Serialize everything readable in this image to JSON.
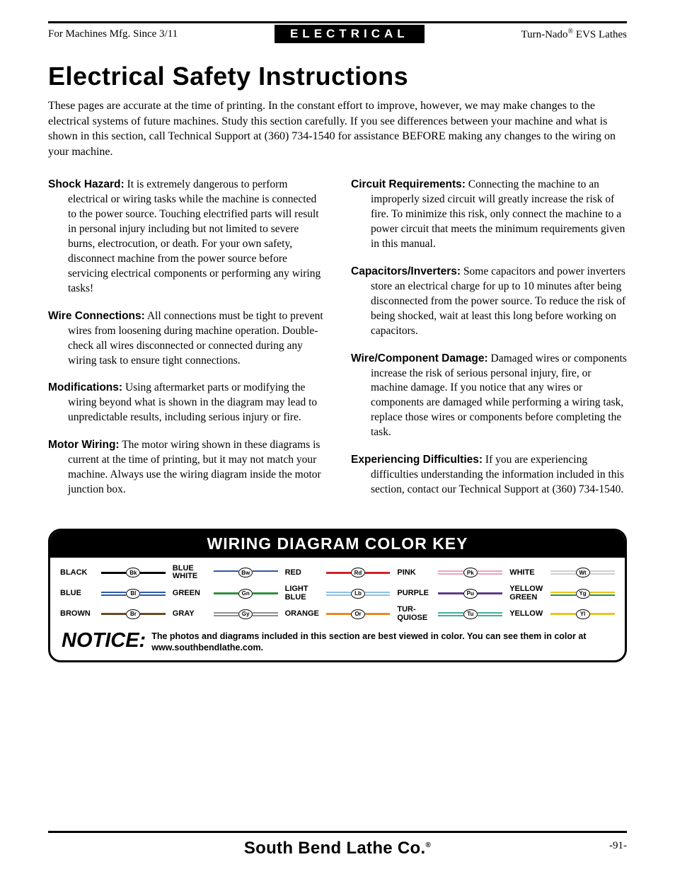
{
  "header": {
    "left": "For Machines Mfg. Since 3/11",
    "center": "ELECTRICAL",
    "right_prefix": "Turn-Nado",
    "right_reg": "®",
    "right_suffix": " EVS Lathes"
  },
  "title": "Electrical Safety Instructions",
  "intro": "These pages are accurate at the time of printing. In the constant effort to improve, however, we may make changes to the electrical systems of future machines. Study this section carefully. If you see differences between your machine and what is shown in this section, call Technical Support at (360) 734-1540 for assistance BEFORE making any changes to the wiring on your machine.",
  "left_items": [
    {
      "label": "Shock Hazard:",
      "text": " It is extremely dangerous to perform electrical or wiring tasks while the machine is connected to the power source. Touching electrified parts will result in personal injury including but not limited to severe burns, electrocution, or death. For your own safety, disconnect machine from the power source before servicing electrical components or performing any wiring tasks!"
    },
    {
      "label": "Wire Connections:",
      "text": " All connections must be tight to prevent wires from loosening during machine operation. Double-check all wires disconnected or connected during any wiring task to ensure tight connections."
    },
    {
      "label": "Modifications:",
      "text": " Using aftermarket parts or modifying the wiring beyond what is shown in the diagram may lead to unpredictable results, including serious injury or fire."
    },
    {
      "label": "Motor Wiring:",
      "text": " The motor wiring shown in these diagrams is current at the time of printing, but it may not match your machine. Always use the wiring diagram inside the motor junction box."
    }
  ],
  "right_items": [
    {
      "label": "Circuit Requirements:",
      "text": " Connecting the machine to an improperly sized circuit will greatly increase the risk of fire. To minimize this risk, only connect the machine to a power circuit that meets the minimum requirements given in this manual."
    },
    {
      "label": "Capacitors/Inverters:",
      "text": " Some capacitors and power inverters store an electrical charge for up to 10 minutes after being disconnected from the power source. To reduce the risk of being shocked, wait at least this long before working on capacitors."
    },
    {
      "label": "Wire/Component Damage:",
      "text": " Damaged wires or components increase the risk of serious personal injury, fire, or machine damage. If you notice that any wires or components are damaged while performing a wiring task, replace those wires or components before completing the task."
    },
    {
      "label": "Experiencing Difficulties:",
      "text": " If you are experiencing difficulties understanding the information included in this section, contact our Technical Support at (360) 734-1540."
    }
  ],
  "color_key": {
    "title": "WIRING DIAGRAM COLOR KEY",
    "entries": [
      {
        "name": "BLACK",
        "abbr": "Bk",
        "c1": "#000000",
        "c2": null
      },
      {
        "name": "BLUE WHITE",
        "abbr": "Bw",
        "c1": "#2e5aa8",
        "c2": "#ffffff"
      },
      {
        "name": "RED",
        "abbr": "Rd",
        "c1": "#d22027",
        "c2": null
      },
      {
        "name": "PINK",
        "abbr": "Pk",
        "c1": "#e9a4bd",
        "c2": "#e9a4bd"
      },
      {
        "name": "WHITE",
        "abbr": "Wt",
        "c1": "#cfcfcf",
        "c2": "#cfcfcf"
      },
      {
        "name": "BLUE",
        "abbr": "Bl",
        "c1": "#2e5aa8",
        "c2": "#2e5aa8"
      },
      {
        "name": "GREEN",
        "abbr": "Gn",
        "c1": "#2f8f3e",
        "c2": null
      },
      {
        "name": "LIGHT BLUE",
        "abbr": "Lb",
        "c1": "#8fbfe6",
        "c2": "#8fbfe6"
      },
      {
        "name": "PURPLE",
        "abbr": "Pu",
        "c1": "#5f3c8a",
        "c2": null
      },
      {
        "name": "YELLOW GREEN",
        "abbr": "Yg",
        "c1": "#e8c51e",
        "c2": "#2f8f3e"
      },
      {
        "name": "BROWN",
        "abbr": "Br",
        "c1": "#6b4a23",
        "c2": null
      },
      {
        "name": "GRAY",
        "abbr": "Gy",
        "c1": "#8f8f8f",
        "c2": "#8f8f8f"
      },
      {
        "name": "ORANGE",
        "abbr": "Or",
        "c1": "#e98a1f",
        "c2": null
      },
      {
        "name": "TUR-QUIOSE",
        "abbr": "Tu",
        "c1": "#3fae9d",
        "c2": "#3fae9d"
      },
      {
        "name": "YELLOW",
        "abbr": "Yl",
        "c1": "#e8c51e",
        "c2": null
      }
    ],
    "notice_label": "NOTICE:",
    "notice_text": "The photos and diagrams included in this section are best viewed in color. You can see them in color at www.southbendlathe.com."
  },
  "footer": {
    "brand": "South Bend Lathe Co.",
    "reg": "®",
    "page": "-91-"
  }
}
